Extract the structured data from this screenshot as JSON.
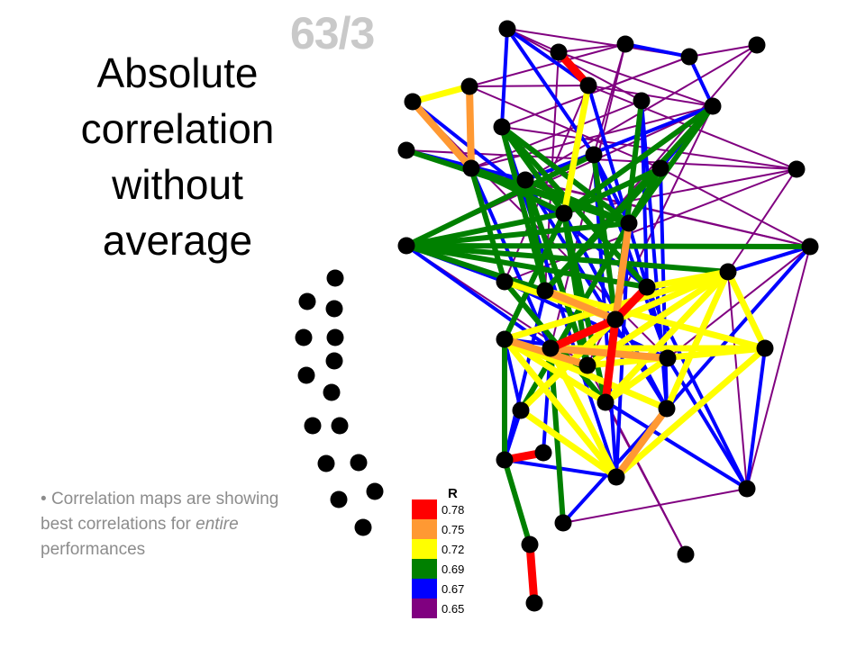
{
  "slide_label": "63/3",
  "title_lines": [
    "Absolute",
    "correlation",
    "without",
    "average"
  ],
  "bullet": {
    "marker": "•",
    "text_before": "Correlation maps are showing best correlations for ",
    "text_emphasis": "entire",
    "text_after": " performances"
  },
  "legend": {
    "title": "R",
    "items": [
      {
        "value": "0.78",
        "color": "#ff0000"
      },
      {
        "value": "0.75",
        "color": "#ff9933"
      },
      {
        "value": "0.72",
        "color": "#ffff00"
      },
      {
        "value": "0.69",
        "color": "#008000"
      },
      {
        "value": "0.67",
        "color": "#0000ff"
      },
      {
        "value": "0.65",
        "color": "#800080"
      }
    ]
  },
  "colors": {
    "node": "#000000",
    "r078": "#ff0000",
    "r075": "#ff9933",
    "r072": "#ffff00",
    "r069": "#008000",
    "r067": "#0000ff",
    "r065": "#800080"
  }
}
